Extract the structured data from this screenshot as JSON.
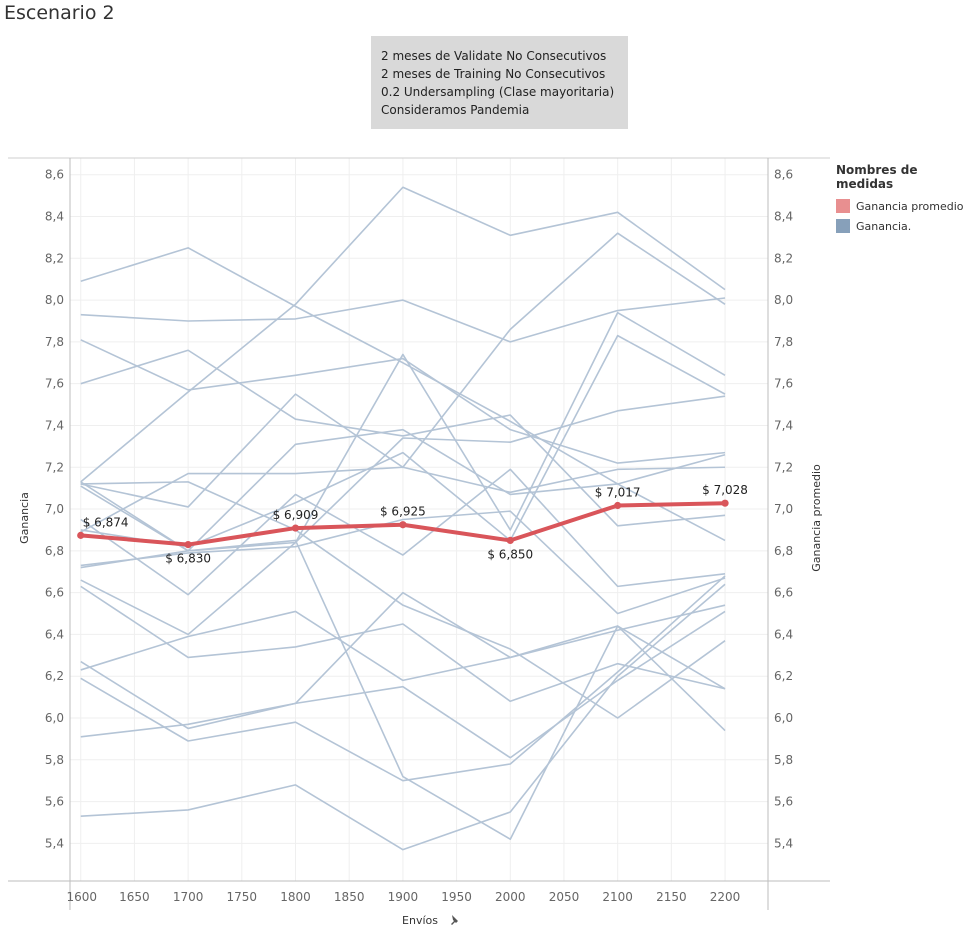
{
  "page": {
    "title": "Escenario 2",
    "caption_lines": [
      "2 meses de Validate No Consecutivos",
      "2 meses de Training No Consecutivos",
      "0.2 Undersampling (Clase mayoritaria)",
      "Consideramos Pandemia"
    ]
  },
  "colors": {
    "average_line": "#d9555a",
    "series_lines": "#b4c4d6",
    "legend_average": "#e88f90",
    "legend_series": "#87a0ba",
    "caption_background": "#d9d9d9"
  },
  "legend": {
    "title": "Nombres de medidas",
    "items": [
      {
        "label": "Ganancia promedio",
        "color": "#e88f90"
      },
      {
        "label": "Ganancia.",
        "color": "#87a0ba"
      }
    ]
  },
  "chart_data": {
    "type": "line",
    "xlabel": "Envíos",
    "ylabel": "Ganancia",
    "ylabel_right": "Ganancia promedio",
    "xlim": [
      1590,
      2240
    ],
    "ylim": [
      5.22,
      8.68
    ],
    "x_ticks": [
      1600,
      1650,
      1700,
      1750,
      1800,
      1850,
      1900,
      1950,
      2000,
      2050,
      2100,
      2150,
      2200
    ],
    "y_ticks": [
      5.4,
      5.6,
      5.8,
      6.0,
      6.2,
      6.4,
      6.6,
      6.8,
      7.0,
      7.2,
      7.4,
      7.6,
      7.8,
      8.0,
      8.2,
      8.4,
      8.6
    ],
    "y_tick_labels": [
      "5,4",
      "5,6",
      "5,8",
      "6,0",
      "6,2",
      "6,4",
      "6,6",
      "6,8",
      "7,0",
      "7,2",
      "7,4",
      "7,6",
      "7,8",
      "8,0",
      "8,2",
      "8,4",
      "8,6"
    ],
    "x": [
      1600,
      1700,
      1800,
      1900,
      2000,
      2100,
      2200
    ],
    "average": {
      "name": "Ganancia promedio",
      "values": [
        6.874,
        6.83,
        6.909,
        6.925,
        6.85,
        7.017,
        7.028
      ],
      "labels": [
        "$ 6,874",
        "$ 6,830",
        "$ 6,909",
        "$ 6,925",
        "$ 6,850",
        "$ 7,017",
        "$ 7,028"
      ],
      "label_positions": [
        "above",
        "below",
        "above",
        "above",
        "below",
        "above",
        "above"
      ]
    },
    "series": [
      {
        "values": [
          8.09,
          8.25,
          7.97,
          7.7,
          7.42,
          7.12,
          6.85
        ]
      },
      {
        "values": [
          7.93,
          7.9,
          7.91,
          8.0,
          7.8,
          7.95,
          8.01
        ]
      },
      {
        "values": [
          7.81,
          7.57,
          7.64,
          7.72,
          7.38,
          7.22,
          7.27
        ]
      },
      {
        "values": [
          7.6,
          7.76,
          7.43,
          7.35,
          7.45,
          6.92,
          6.97
        ]
      },
      {
        "values": [
          7.13,
          7.56,
          7.98,
          8.54,
          8.31,
          8.42,
          8.05
        ]
      },
      {
        "values": [
          7.12,
          7.01,
          7.55,
          7.2,
          7.86,
          8.32,
          7.98
        ]
      },
      {
        "values": [
          7.11,
          6.8,
          7.31,
          7.38,
          7.07,
          7.12,
          7.26
        ]
      },
      {
        "values": [
          6.95,
          6.59,
          7.07,
          6.78,
          7.19,
          6.63,
          6.69
        ]
      },
      {
        "values": [
          7.12,
          7.13,
          6.9,
          6.54,
          6.33,
          6.0,
          6.37
        ]
      },
      {
        "values": [
          6.73,
          6.79,
          6.82,
          6.95,
          6.99,
          6.5,
          6.67
        ]
      },
      {
        "values": [
          7.13,
          6.8,
          6.84,
          7.74,
          6.9,
          7.94,
          7.64
        ]
      },
      {
        "values": [
          6.89,
          7.17,
          7.17,
          7.2,
          7.08,
          7.19,
          7.2
        ]
      },
      {
        "values": [
          6.66,
          6.4,
          6.84,
          7.34,
          7.32,
          7.47,
          7.54
        ]
      },
      {
        "values": [
          6.63,
          6.29,
          6.34,
          6.45,
          6.08,
          6.26,
          6.14
        ]
      },
      {
        "values": [
          6.27,
          5.95,
          6.07,
          6.6,
          6.29,
          6.44,
          5.94
        ]
      },
      {
        "values": [
          6.23,
          6.39,
          6.51,
          6.18,
          6.29,
          6.42,
          6.54
        ]
      },
      {
        "values": [
          6.19,
          5.89,
          5.98,
          5.7,
          5.78,
          6.22,
          6.68
        ]
      },
      {
        "values": [
          5.91,
          5.97,
          6.07,
          6.15,
          5.81,
          6.18,
          6.51
        ]
      },
      {
        "values": [
          5.53,
          5.56,
          5.68,
          5.37,
          5.55,
          6.2,
          6.64
        ]
      },
      {
        "values": [
          6.72,
          6.8,
          6.85,
          5.72,
          5.42,
          6.44,
          6.14
        ]
      },
      {
        "values": [
          6.9,
          6.82,
          7.03,
          7.27,
          6.85,
          7.83,
          7.55
        ]
      }
    ]
  }
}
